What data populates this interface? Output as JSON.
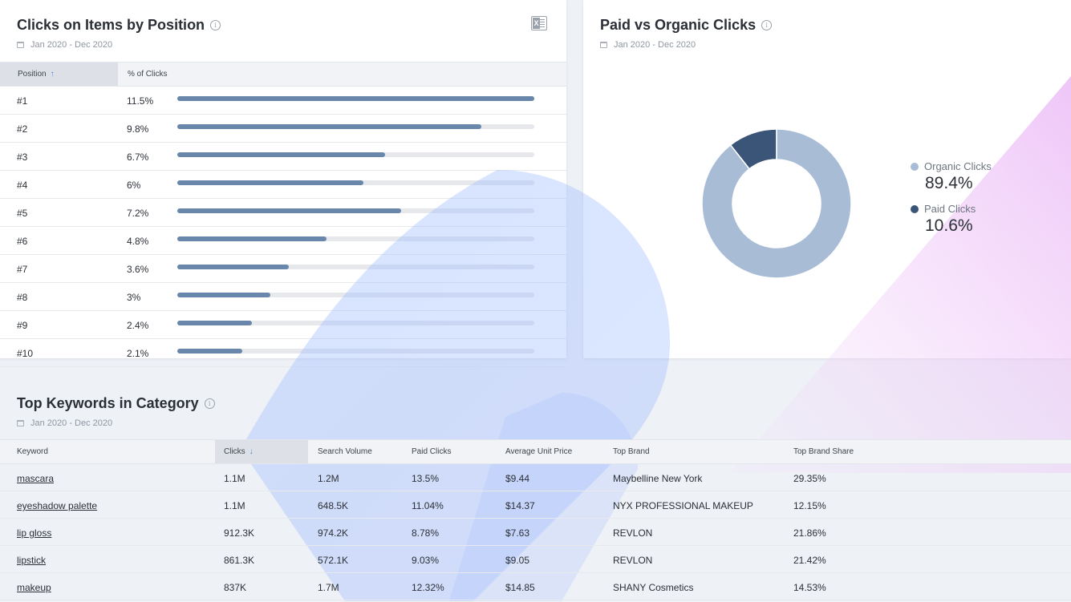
{
  "position_card": {
    "title": "Clicks on Items by Position",
    "date_range": "Jan 2020 - Dec 2020",
    "columns": {
      "position": "Position",
      "pct": "% of Clicks"
    },
    "rows": [
      {
        "position": "#1",
        "pct_label": "11.5%",
        "pct": 11.5
      },
      {
        "position": "#2",
        "pct_label": "9.8%",
        "pct": 9.8
      },
      {
        "position": "#3",
        "pct_label": "6.7%",
        "pct": 6.7
      },
      {
        "position": "#4",
        "pct_label": "6%",
        "pct": 6.0
      },
      {
        "position": "#5",
        "pct_label": "7.2%",
        "pct": 7.2
      },
      {
        "position": "#6",
        "pct_label": "4.8%",
        "pct": 4.8
      },
      {
        "position": "#7",
        "pct_label": "3.6%",
        "pct": 3.6
      },
      {
        "position": "#8",
        "pct_label": "3%",
        "pct": 3.0
      },
      {
        "position": "#9",
        "pct_label": "2.4%",
        "pct": 2.4
      },
      {
        "position": "#10",
        "pct_label": "2.1%",
        "pct": 2.1
      }
    ]
  },
  "paid_organic_card": {
    "title": "Paid vs Organic Clicks",
    "date_range": "Jan 2020 - Dec 2020",
    "legend": [
      {
        "label": "Organic Clicks",
        "value": "89.4%",
        "color": "#a9bcd6"
      },
      {
        "label": "Paid Clicks",
        "value": "10.6%",
        "color": "#3a5577"
      }
    ]
  },
  "chart_data": {
    "type": "pie",
    "categories": [
      "Organic Clicks",
      "Paid Clicks"
    ],
    "values": [
      89.4,
      10.6
    ],
    "title": "Paid vs Organic Clicks",
    "subtitle": "Jan 2020 - Dec 2020",
    "donut": true,
    "legend": "right"
  },
  "keywords_card": {
    "title": "Top Keywords in Category",
    "date_range": "Jan 2020 - Dec 2020",
    "columns": [
      "Keyword",
      "Clicks",
      "Search Volume",
      "Paid Clicks",
      "Average Unit Price",
      "Top Brand",
      "Top Brand Share"
    ],
    "rows": [
      {
        "keyword": "mascara",
        "clicks": "1.1M",
        "search_volume": "1.2M",
        "paid_clicks": "13.5%",
        "avg_price": "$9.44",
        "top_brand": "Maybelline New York",
        "brand_share": "29.35%"
      },
      {
        "keyword": "eyeshadow palette",
        "clicks": "1.1M",
        "search_volume": "648.5K",
        "paid_clicks": "11.04%",
        "avg_price": "$14.37",
        "top_brand": "NYX PROFESSIONAL MAKEUP",
        "brand_share": "12.15%"
      },
      {
        "keyword": "lip gloss",
        "clicks": "912.3K",
        "search_volume": "974.2K",
        "paid_clicks": "8.78%",
        "avg_price": "$7.63",
        "top_brand": "REVLON",
        "brand_share": "21.86%"
      },
      {
        "keyword": "lipstick",
        "clicks": "861.3K",
        "search_volume": "572.1K",
        "paid_clicks": "9.03%",
        "avg_price": "$9.05",
        "top_brand": "REVLON",
        "brand_share": "21.42%"
      },
      {
        "keyword": "makeup",
        "clicks": "837K",
        "search_volume": "1.7M",
        "paid_clicks": "12.32%",
        "avg_price": "$14.85",
        "top_brand": "SHANY Cosmetics",
        "brand_share": "14.53%"
      }
    ]
  },
  "colors": {
    "bar_fill": "#6986ab",
    "bar_track": "#e6e8ec",
    "accent": "#4d86d6"
  }
}
